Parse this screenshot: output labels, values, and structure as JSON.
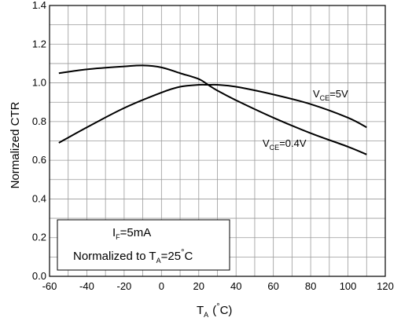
{
  "chart_data": {
    "type": "line",
    "xlabel": {
      "main": "T",
      "sub": "A",
      "unit": "(°C)",
      "unit_pre": "(",
      "unit_deg": "°",
      "unit_post": "C)"
    },
    "ylabel": "Normalized CTR",
    "xlim": [
      -60,
      120
    ],
    "ylim": [
      0.0,
      1.4
    ],
    "xticks": [
      "-60",
      "-40",
      "-20",
      "0",
      "20",
      "40",
      "60",
      "80",
      "100",
      "120"
    ],
    "yticks": [
      "0.0",
      "0.2",
      "0.4",
      "0.6",
      "0.8",
      "1.0",
      "1.2",
      "1.4"
    ],
    "grid": true,
    "series": [
      {
        "name": "VCE=5V",
        "label": {
          "main": "V",
          "sub": "CE",
          "rest": "=5V"
        },
        "x": [
          -55,
          -40,
          -20,
          0,
          10,
          20,
          25,
          30,
          40,
          60,
          80,
          100,
          110
        ],
        "y": [
          0.69,
          0.77,
          0.87,
          0.95,
          0.98,
          0.99,
          0.99,
          0.99,
          0.98,
          0.94,
          0.89,
          0.82,
          0.77
        ]
      },
      {
        "name": "VCE=0.4V",
        "label": {
          "main": "V",
          "sub": "CE",
          "rest": "=0.4V"
        },
        "x": [
          -55,
          -40,
          -20,
          -10,
          0,
          10,
          20,
          25,
          30,
          40,
          60,
          80,
          100,
          110
        ],
        "y": [
          1.05,
          1.07,
          1.085,
          1.09,
          1.08,
          1.05,
          1.02,
          0.99,
          0.96,
          0.91,
          0.82,
          0.74,
          0.67,
          0.63
        ]
      }
    ],
    "legend_box": {
      "line1": {
        "main": "I",
        "sub": "F",
        "rest": "=5mA"
      },
      "line2": {
        "pre": "Normalized to T",
        "sub": "A",
        "rest": "=25",
        "deg": "°",
        "post": "C"
      }
    }
  }
}
